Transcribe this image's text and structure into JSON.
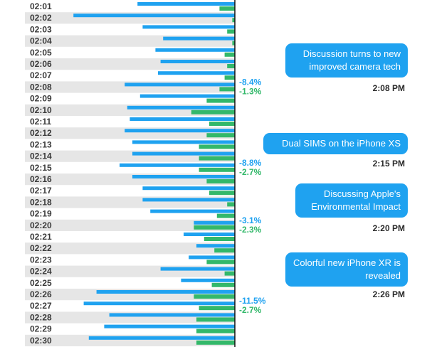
{
  "chart_data": {
    "type": "bar",
    "orientation": "horizontal-diverging",
    "categories": [
      "02:01",
      "02:02",
      "02:03",
      "02:04",
      "02:05",
      "02:06",
      "02:07",
      "02:08",
      "02:09",
      "02:10",
      "02:11",
      "02:12",
      "02:13",
      "02:14",
      "02:15",
      "02:16",
      "02:17",
      "02:18",
      "02:19",
      "02:20",
      "02:21",
      "02:22",
      "02:23",
      "02:24",
      "02:25",
      "02:26",
      "02:27",
      "02:28",
      "02:29",
      "02:30"
    ],
    "series": [
      {
        "color": "#1fa2f0",
        "values": [
          38,
          63,
          36,
          28,
          31,
          29,
          30,
          43,
          37,
          42,
          41,
          43,
          40,
          40,
          45,
          40,
          36,
          36,
          33,
          16,
          20,
          15,
          18,
          29,
          21,
          54,
          59,
          49,
          51,
          57
        ]
      },
      {
        "color": "#33b86a",
        "values": [
          6,
          1,
          3,
          1,
          4,
          3,
          4,
          6,
          11,
          17,
          10,
          11,
          14,
          14,
          14,
          11,
          10,
          3,
          7,
          16,
          12,
          8,
          11,
          4,
          9,
          16,
          14,
          15,
          15,
          15
        ]
      }
    ],
    "annotations": [
      {
        "category": "02:08",
        "blue": "-8.4%",
        "green": "-1.3%"
      },
      {
        "category": "02:15",
        "blue": "-8.8%",
        "green": "-2.7%"
      },
      {
        "category": "02:20",
        "blue": "-3.1%",
        "green": "-2.3%"
      },
      {
        "category": "02:27",
        "blue": "-11.5%",
        "green": "-2.7%"
      }
    ],
    "colors": {
      "blue": "#1fa2f0",
      "green": "#33b86a",
      "stripe": "#e6e6e6",
      "axis": "#111111"
    }
  },
  "events": [
    {
      "message": "Discussion turns to new improved camera tech",
      "time": "2:08 PM"
    },
    {
      "message": "Dual SIMS on the iPhone XS",
      "time": "2:15 PM"
    },
    {
      "message": "Discussing Apple's Environmental Impact",
      "time": "2:20 PM"
    },
    {
      "message": "Colorful new iPhone XR is revealed",
      "time": "2:26 PM"
    }
  ]
}
